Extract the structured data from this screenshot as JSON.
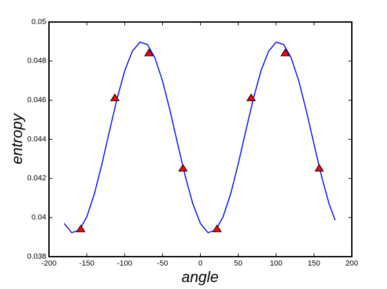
{
  "chart_data": {
    "type": "line",
    "xlabel": "angle",
    "ylabel": "entropy",
    "xlim": [
      -200,
      200
    ],
    "xticks": [
      -200,
      -150,
      -100,
      -50,
      0,
      50,
      100,
      150,
      200
    ],
    "ylim": [
      0.038,
      0.05
    ],
    "yticks": [
      0.038,
      0.04,
      0.042,
      0.044,
      0.046,
      0.048,
      0.05
    ],
    "grid": false,
    "series": [
      {
        "color": "#0000ff",
        "marker": "none",
        "x": [
          -180,
          -170,
          -160,
          -150,
          -140,
          -130,
          -120,
          -110,
          -100,
          -90,
          -80,
          -70,
          -60,
          -50,
          -40,
          -30,
          -20,
          -10,
          0,
          10,
          20,
          30,
          40,
          50,
          60,
          70,
          80,
          90,
          100,
          110,
          120,
          130,
          140,
          150,
          160,
          170,
          178
        ],
        "values": [
          0.0397,
          0.03923,
          0.03935,
          0.04004,
          0.04122,
          0.04275,
          0.04444,
          0.04609,
          0.0475,
          0.0485,
          0.04897,
          0.04885,
          0.04816,
          0.04698,
          0.04545,
          0.04376,
          0.04211,
          0.0407,
          0.0397,
          0.03923,
          0.03935,
          0.04004,
          0.04122,
          0.04275,
          0.04444,
          0.04609,
          0.0475,
          0.0485,
          0.04897,
          0.04885,
          0.04816,
          0.04698,
          0.04545,
          0.04376,
          0.04211,
          0.0407,
          0.03986
        ]
      },
      {
        "color": "#ff0000",
        "marker": "triangle",
        "x": [
          -158,
          -113,
          -68,
          -23,
          22,
          67,
          112,
          157
        ],
        "values": [
          0.0394,
          0.0461,
          0.0484,
          0.0425,
          0.0394,
          0.0461,
          0.0484,
          0.0425
        ]
      }
    ]
  }
}
